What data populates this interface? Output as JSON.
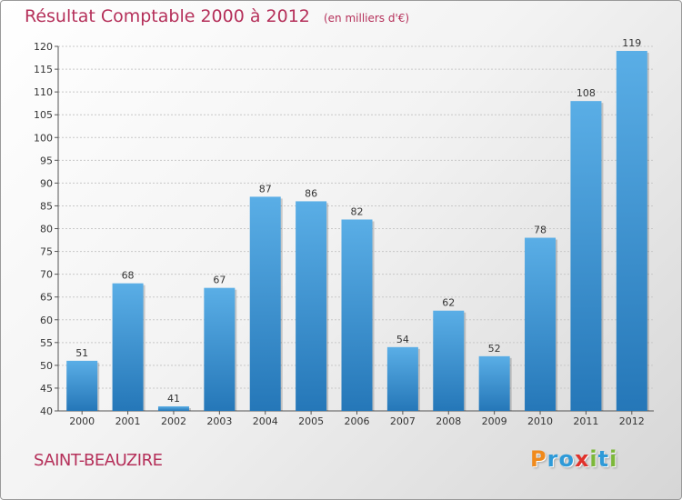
{
  "title": "Résultat Comptable 2000 à 2012",
  "subtitle": "(en milliers d'€)",
  "commune": "SAINT-BEAUZIRE",
  "logo": {
    "letters": [
      "P",
      "r",
      "o",
      "x",
      "i",
      "t",
      "i"
    ],
    "colors": [
      "#f08a1c",
      "#2e9ad8",
      "#2e9ad8",
      "#e0312b",
      "#7cb83a",
      "#2e9ad8",
      "#7cb83a"
    ]
  },
  "colors": {
    "bar_light": "#5aaee6",
    "bar_dark": "#2577b8",
    "accent": "#b5305a"
  },
  "chart_data": {
    "type": "bar",
    "title": "Résultat Comptable 2000 à 2012",
    "subtitle": "(en milliers d'€)",
    "categories": [
      "2000",
      "2001",
      "2002",
      "2003",
      "2004",
      "2005",
      "2006",
      "2007",
      "2008",
      "2009",
      "2010",
      "2011",
      "2012"
    ],
    "values": [
      51,
      68,
      41,
      67,
      87,
      86,
      82,
      54,
      62,
      52,
      78,
      108,
      119
    ],
    "ylim": [
      40,
      120
    ],
    "yticks": [
      40,
      45,
      50,
      55,
      60,
      65,
      70,
      75,
      80,
      85,
      90,
      95,
      100,
      105,
      110,
      115,
      120
    ],
    "grid": true,
    "legend": "none"
  }
}
